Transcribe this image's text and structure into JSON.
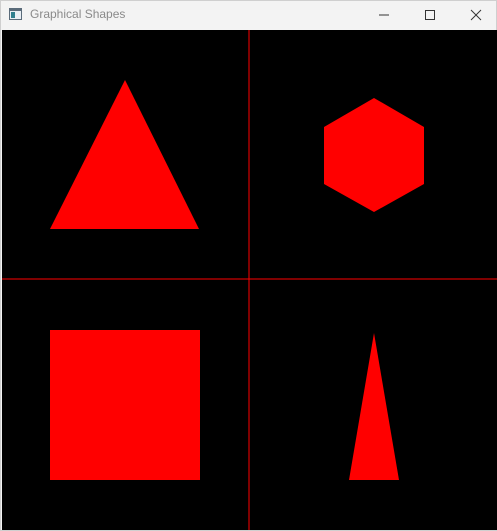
{
  "window": {
    "title": "Graphical Shapes",
    "controls": [
      "minimize",
      "maximize",
      "close"
    ]
  },
  "canvas": {
    "background_color": "#000000",
    "grid_line_color": "#ff0000",
    "shape_fill_color": "#ff0000",
    "quadrants": [
      {
        "position": "top-left",
        "shape": "triangle"
      },
      {
        "position": "top-right",
        "shape": "hexagon"
      },
      {
        "position": "bottom-left",
        "shape": "square"
      },
      {
        "position": "bottom-right",
        "shape": "narrow-triangle"
      }
    ]
  }
}
